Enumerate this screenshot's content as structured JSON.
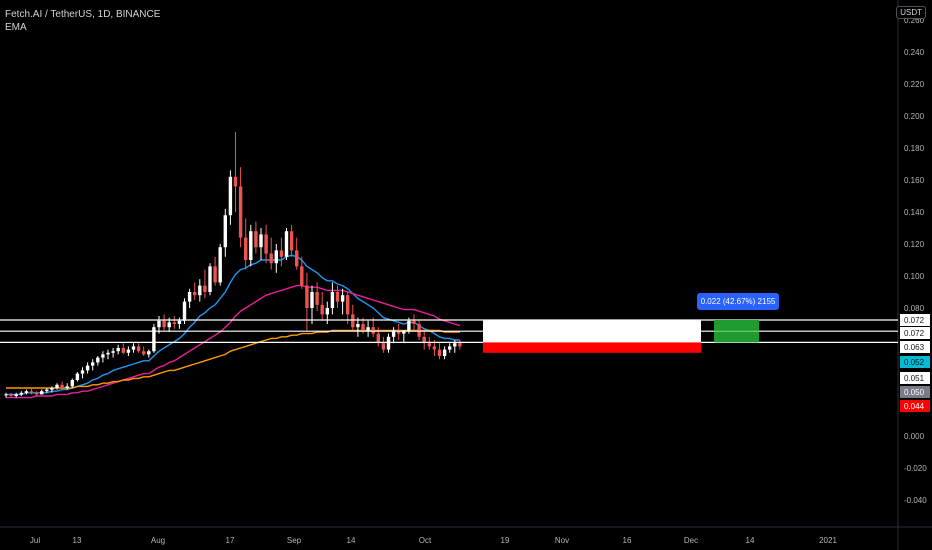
{
  "header": {
    "title": "Fetch.AI / TetherUS, 1D, BINANCE",
    "indicator": "EMA"
  },
  "currency": "USDT",
  "position_tool": {
    "label": "0.022 (42.67%) 2155"
  },
  "chart_data": {
    "type": "candlestick",
    "symbol": "Fetch.AI / TetherUS",
    "interval": "1D",
    "exchange": "BINANCE",
    "y_ticks": [
      "0.260",
      "0.240",
      "0.220",
      "0.200",
      "0.180",
      "0.160",
      "0.140",
      "0.120",
      "0.100",
      "0.080",
      "0.000",
      "-0.020",
      "-0.040"
    ],
    "y_tick_values": [
      0.26,
      0.24,
      0.22,
      0.2,
      0.18,
      0.16,
      0.14,
      0.12,
      0.1,
      0.08,
      0.0,
      -0.02,
      -0.04
    ],
    "x_ticks": [
      "Jul",
      "13",
      "Aug",
      "17",
      "Sep",
      "14",
      "Oct",
      "19",
      "Nov",
      "16",
      "Dec",
      "14",
      "2021"
    ],
    "price_labels": [
      {
        "text": "0.072",
        "value": 0.0725,
        "bg": "#ffffff",
        "fg": "#131722"
      },
      {
        "text": "0.072",
        "value": 0.0722,
        "bg": "#ffffff",
        "fg": "#131722"
      },
      {
        "text": "0.063",
        "value": 0.063,
        "bg": "#ffffff",
        "fg": "#131722"
      },
      {
        "text": "0.052",
        "value": 0.052,
        "bg": "#00bcd4",
        "fg": "#131722"
      },
      {
        "text": "0.051",
        "value": 0.051,
        "bg": "#ffffff",
        "fg": "#131722"
      },
      {
        "text": "0.050",
        "value": 0.05,
        "bg": "#787b86",
        "fg": "#ffffff"
      },
      {
        "text": "0.044",
        "value": 0.044,
        "bg": "#ff0000",
        "fg": "#ffffff"
      }
    ],
    "horizontal_lines": [
      0.0725,
      0.0655,
      0.0585
    ],
    "position": {
      "entry": 0.0585,
      "stop": 0.052,
      "target": 0.081,
      "target_box_low": 0.0585,
      "target_box_high": 0.0725
    },
    "candles": [
      [
        0.026,
        0.027,
        0.024,
        0.026
      ],
      [
        0.026,
        0.027,
        0.024,
        0.025
      ],
      [
        0.025,
        0.027,
        0.024,
        0.026
      ],
      [
        0.026,
        0.028,
        0.025,
        0.027
      ],
      [
        0.027,
        0.029,
        0.026,
        0.028
      ],
      [
        0.028,
        0.03,
        0.026,
        0.027
      ],
      [
        0.027,
        0.028,
        0.025,
        0.026
      ],
      [
        0.026,
        0.029,
        0.026,
        0.028
      ],
      [
        0.028,
        0.03,
        0.027,
        0.029
      ],
      [
        0.029,
        0.031,
        0.027,
        0.03
      ],
      [
        0.03,
        0.033,
        0.029,
        0.032
      ],
      [
        0.032,
        0.034,
        0.029,
        0.03
      ],
      [
        0.03,
        0.033,
        0.029,
        0.031
      ],
      [
        0.031,
        0.036,
        0.03,
        0.035
      ],
      [
        0.035,
        0.04,
        0.034,
        0.039
      ],
      [
        0.039,
        0.043,
        0.036,
        0.041
      ],
      [
        0.041,
        0.046,
        0.039,
        0.044
      ],
      [
        0.044,
        0.048,
        0.041,
        0.046
      ],
      [
        0.046,
        0.05,
        0.044,
        0.049
      ],
      [
        0.049,
        0.053,
        0.046,
        0.051
      ],
      [
        0.051,
        0.054,
        0.048,
        0.052
      ],
      [
        0.052,
        0.055,
        0.049,
        0.053
      ],
      [
        0.053,
        0.057,
        0.051,
        0.055
      ],
      [
        0.055,
        0.058,
        0.051,
        0.052
      ],
      [
        0.052,
        0.056,
        0.05,
        0.054
      ],
      [
        0.054,
        0.058,
        0.052,
        0.056
      ],
      [
        0.056,
        0.058,
        0.052,
        0.053
      ],
      [
        0.053,
        0.056,
        0.05,
        0.051
      ],
      [
        0.051,
        0.054,
        0.049,
        0.053
      ],
      [
        0.053,
        0.07,
        0.052,
        0.068
      ],
      [
        0.068,
        0.075,
        0.064,
        0.072
      ],
      [
        0.072,
        0.076,
        0.066,
        0.068
      ],
      [
        0.068,
        0.074,
        0.065,
        0.071
      ],
      [
        0.071,
        0.075,
        0.067,
        0.07
      ],
      [
        0.07,
        0.074,
        0.067,
        0.072
      ],
      [
        0.072,
        0.086,
        0.07,
        0.084
      ],
      [
        0.084,
        0.092,
        0.08,
        0.09
      ],
      [
        0.09,
        0.096,
        0.085,
        0.088
      ],
      [
        0.088,
        0.098,
        0.084,
        0.094
      ],
      [
        0.094,
        0.104,
        0.086,
        0.09
      ],
      [
        0.09,
        0.108,
        0.088,
        0.106
      ],
      [
        0.106,
        0.112,
        0.094,
        0.096
      ],
      [
        0.096,
        0.12,
        0.094,
        0.118
      ],
      [
        0.118,
        0.142,
        0.112,
        0.138
      ],
      [
        0.138,
        0.166,
        0.132,
        0.162
      ],
      [
        0.162,
        0.19,
        0.14,
        0.156
      ],
      [
        0.156,
        0.168,
        0.118,
        0.124
      ],
      [
        0.124,
        0.136,
        0.104,
        0.11
      ],
      [
        0.11,
        0.132,
        0.106,
        0.128
      ],
      [
        0.128,
        0.134,
        0.114,
        0.118
      ],
      [
        0.118,
        0.13,
        0.11,
        0.126
      ],
      [
        0.126,
        0.132,
        0.108,
        0.114
      ],
      [
        0.114,
        0.124,
        0.104,
        0.108
      ],
      [
        0.108,
        0.12,
        0.102,
        0.116
      ],
      [
        0.116,
        0.124,
        0.106,
        0.112
      ],
      [
        0.112,
        0.13,
        0.11,
        0.128
      ],
      [
        0.128,
        0.132,
        0.112,
        0.116
      ],
      [
        0.116,
        0.124,
        0.104,
        0.106
      ],
      [
        0.106,
        0.112,
        0.092,
        0.094
      ],
      [
        0.094,
        0.102,
        0.066,
        0.08
      ],
      [
        0.08,
        0.094,
        0.07,
        0.09
      ],
      [
        0.09,
        0.096,
        0.078,
        0.082
      ],
      [
        0.082,
        0.09,
        0.072,
        0.076
      ],
      [
        0.076,
        0.084,
        0.07,
        0.08
      ],
      [
        0.08,
        0.096,
        0.076,
        0.09
      ],
      [
        0.09,
        0.094,
        0.08,
        0.084
      ],
      [
        0.084,
        0.092,
        0.076,
        0.088
      ],
      [
        0.088,
        0.09,
        0.07,
        0.076
      ],
      [
        0.076,
        0.082,
        0.066,
        0.068
      ],
      [
        0.068,
        0.074,
        0.062,
        0.07
      ],
      [
        0.07,
        0.074,
        0.064,
        0.066
      ],
      [
        0.066,
        0.072,
        0.062,
        0.068
      ],
      [
        0.068,
        0.074,
        0.062,
        0.064
      ],
      [
        0.064,
        0.068,
        0.056,
        0.058
      ],
      [
        0.058,
        0.062,
        0.052,
        0.054
      ],
      [
        0.054,
        0.064,
        0.052,
        0.062
      ],
      [
        0.062,
        0.068,
        0.058,
        0.066
      ],
      [
        0.066,
        0.07,
        0.06,
        0.064
      ],
      [
        0.064,
        0.066,
        0.058,
        0.066
      ],
      [
        0.066,
        0.074,
        0.064,
        0.072
      ],
      [
        0.072,
        0.076,
        0.066,
        0.07
      ],
      [
        0.07,
        0.072,
        0.06,
        0.062
      ],
      [
        0.062,
        0.066,
        0.054,
        0.058
      ],
      [
        0.058,
        0.062,
        0.054,
        0.056
      ],
      [
        0.056,
        0.06,
        0.05,
        0.054
      ],
      [
        0.054,
        0.058,
        0.048,
        0.05
      ],
      [
        0.05,
        0.056,
        0.048,
        0.054
      ],
      [
        0.054,
        0.058,
        0.052,
        0.056
      ],
      [
        0.056,
        0.06,
        0.052,
        0.058
      ],
      [
        0.058,
        0.06,
        0.054,
        0.056
      ]
    ],
    "ema_series": [
      {
        "name": "EMA fast",
        "color": "#2196f3",
        "values": [
          0.026,
          0.026,
          0.026,
          0.026,
          0.027,
          0.027,
          0.027,
          0.027,
          0.027,
          0.028,
          0.028,
          0.029,
          0.029,
          0.03,
          0.031,
          0.032,
          0.033,
          0.035,
          0.036,
          0.038,
          0.039,
          0.041,
          0.042,
          0.043,
          0.044,
          0.045,
          0.046,
          0.047,
          0.047,
          0.05,
          0.053,
          0.055,
          0.057,
          0.059,
          0.061,
          0.064,
          0.068,
          0.071,
          0.075,
          0.077,
          0.08,
          0.082,
          0.086,
          0.09,
          0.096,
          0.101,
          0.104,
          0.105,
          0.107,
          0.108,
          0.11,
          0.11,
          0.11,
          0.11,
          0.11,
          0.112,
          0.113,
          0.112,
          0.11,
          0.106,
          0.104,
          0.102,
          0.099,
          0.097,
          0.097,
          0.095,
          0.094,
          0.092,
          0.089,
          0.086,
          0.084,
          0.082,
          0.08,
          0.077,
          0.074,
          0.073,
          0.072,
          0.071,
          0.07,
          0.071,
          0.071,
          0.069,
          0.067,
          0.066,
          0.064,
          0.062,
          0.061,
          0.061,
          0.06,
          0.06
        ]
      },
      {
        "name": "EMA mid",
        "color": "#e91e9b",
        "values": [
          0.024,
          0.024,
          0.024,
          0.024,
          0.024,
          0.024,
          0.025,
          0.025,
          0.025,
          0.025,
          0.026,
          0.026,
          0.026,
          0.027,
          0.027,
          0.028,
          0.028,
          0.029,
          0.03,
          0.031,
          0.032,
          0.033,
          0.034,
          0.035,
          0.036,
          0.037,
          0.038,
          0.039,
          0.039,
          0.041,
          0.043,
          0.044,
          0.046,
          0.047,
          0.049,
          0.051,
          0.053,
          0.055,
          0.057,
          0.059,
          0.061,
          0.063,
          0.065,
          0.068,
          0.071,
          0.075,
          0.078,
          0.08,
          0.082,
          0.084,
          0.086,
          0.088,
          0.089,
          0.09,
          0.091,
          0.092,
          0.093,
          0.094,
          0.094,
          0.093,
          0.093,
          0.093,
          0.092,
          0.091,
          0.091,
          0.091,
          0.091,
          0.09,
          0.089,
          0.088,
          0.087,
          0.086,
          0.085,
          0.084,
          0.083,
          0.082,
          0.081,
          0.08,
          0.079,
          0.079,
          0.079,
          0.078,
          0.077,
          0.076,
          0.075,
          0.073,
          0.072,
          0.071,
          0.07,
          0.069
        ]
      },
      {
        "name": "EMA slow",
        "color": "#ff9800",
        "values": [
          0.03,
          0.03,
          0.03,
          0.03,
          0.03,
          0.03,
          0.03,
          0.03,
          0.03,
          0.03,
          0.03,
          0.03,
          0.03,
          0.03,
          0.031,
          0.031,
          0.031,
          0.032,
          0.032,
          0.033,
          0.033,
          0.034,
          0.034,
          0.035,
          0.035,
          0.036,
          0.036,
          0.037,
          0.037,
          0.038,
          0.039,
          0.04,
          0.041,
          0.041,
          0.042,
          0.043,
          0.044,
          0.045,
          0.046,
          0.047,
          0.048,
          0.049,
          0.05,
          0.051,
          0.053,
          0.054,
          0.055,
          0.056,
          0.057,
          0.058,
          0.059,
          0.06,
          0.061,
          0.061,
          0.062,
          0.062,
          0.063,
          0.063,
          0.064,
          0.064,
          0.064,
          0.065,
          0.065,
          0.065,
          0.066,
          0.066,
          0.066,
          0.066,
          0.066,
          0.066,
          0.066,
          0.066,
          0.066,
          0.066,
          0.066,
          0.066,
          0.066,
          0.066,
          0.066,
          0.066,
          0.066,
          0.066,
          0.066,
          0.066,
          0.066,
          0.066,
          0.065,
          0.065,
          0.065,
          0.065
        ]
      }
    ]
  }
}
